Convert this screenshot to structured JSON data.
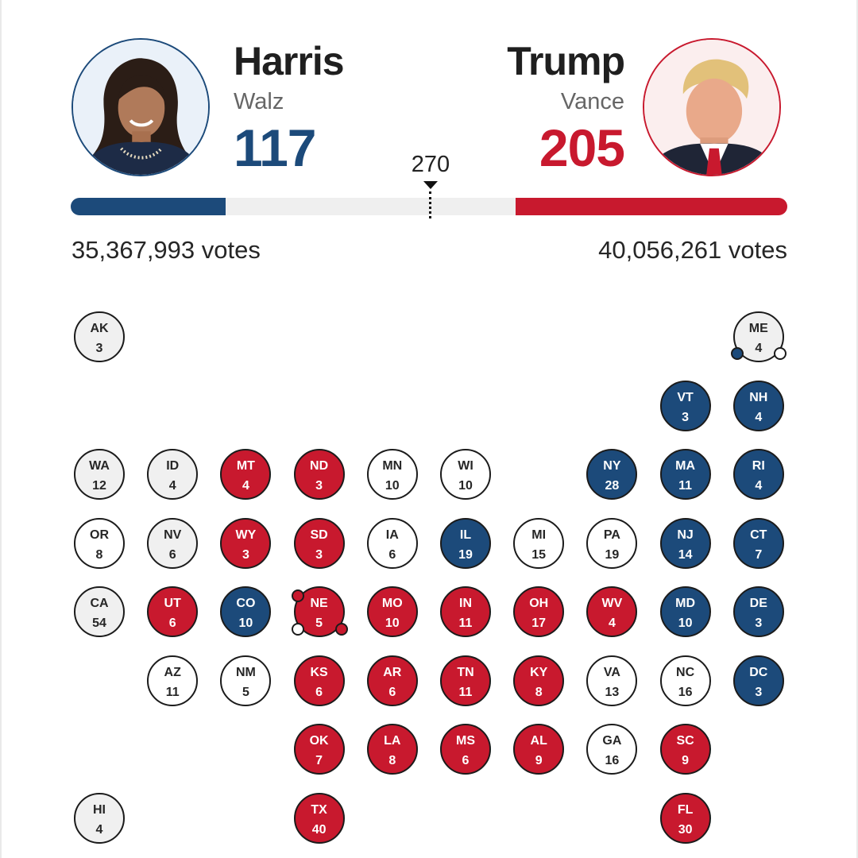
{
  "colors": {
    "dem": "#1c4a7a",
    "rep": "#c8192e",
    "undecided_light": "#f0f0f0",
    "undecided_white": "#ffffff"
  },
  "dem": {
    "name": "Harris",
    "running_mate": "Walz",
    "electoral_votes": "117",
    "electoral_share": 0.2167,
    "votes": "35,367,993 votes",
    "avatar_icon": "portrait-harris"
  },
  "rep": {
    "name": "Trump",
    "running_mate": "Vance",
    "electoral_votes": "205",
    "electoral_share": 0.3796,
    "votes": "40,056,261 votes",
    "avatar_icon": "portrait-trump"
  },
  "threshold": "270",
  "states": [
    {
      "abbr": "AK",
      "ev": "3",
      "status": "reporting",
      "col": 0,
      "row": 0
    },
    {
      "abbr": "ME",
      "ev": "4",
      "status": "reporting",
      "col": 9,
      "row": 0,
      "districts": [
        "dem",
        "none"
      ]
    },
    {
      "abbr": "VT",
      "ev": "3",
      "status": "dem",
      "col": 8,
      "row": 1
    },
    {
      "abbr": "NH",
      "ev": "4",
      "status": "dem",
      "col": 9,
      "row": 1
    },
    {
      "abbr": "WA",
      "ev": "12",
      "status": "reporting",
      "col": 0,
      "row": 2
    },
    {
      "abbr": "ID",
      "ev": "4",
      "status": "reporting",
      "col": 1,
      "row": 2
    },
    {
      "abbr": "MT",
      "ev": "4",
      "status": "rep",
      "col": 2,
      "row": 2
    },
    {
      "abbr": "ND",
      "ev": "3",
      "status": "rep",
      "col": 3,
      "row": 2
    },
    {
      "abbr": "MN",
      "ev": "10",
      "status": "none",
      "col": 4,
      "row": 2
    },
    {
      "abbr": "WI",
      "ev": "10",
      "status": "none",
      "col": 5,
      "row": 2
    },
    {
      "abbr": "NY",
      "ev": "28",
      "status": "dem",
      "col": 7,
      "row": 2
    },
    {
      "abbr": "MA",
      "ev": "11",
      "status": "dem",
      "col": 8,
      "row": 2
    },
    {
      "abbr": "RI",
      "ev": "4",
      "status": "dem",
      "col": 9,
      "row": 2
    },
    {
      "abbr": "OR",
      "ev": "8",
      "status": "none",
      "col": 0,
      "row": 3
    },
    {
      "abbr": "NV",
      "ev": "6",
      "status": "reporting",
      "col": 1,
      "row": 3
    },
    {
      "abbr": "WY",
      "ev": "3",
      "status": "rep",
      "col": 2,
      "row": 3
    },
    {
      "abbr": "SD",
      "ev": "3",
      "status": "rep",
      "col": 3,
      "row": 3
    },
    {
      "abbr": "IA",
      "ev": "6",
      "status": "none",
      "col": 4,
      "row": 3
    },
    {
      "abbr": "IL",
      "ev": "19",
      "status": "dem",
      "col": 5,
      "row": 3
    },
    {
      "abbr": "MI",
      "ev": "15",
      "status": "none",
      "col": 6,
      "row": 3
    },
    {
      "abbr": "PA",
      "ev": "19",
      "status": "none",
      "col": 7,
      "row": 3
    },
    {
      "abbr": "NJ",
      "ev": "14",
      "status": "dem",
      "col": 8,
      "row": 3
    },
    {
      "abbr": "CT",
      "ev": "7",
      "status": "dem",
      "col": 9,
      "row": 3
    },
    {
      "abbr": "CA",
      "ev": "54",
      "status": "reporting",
      "col": 0,
      "row": 4
    },
    {
      "abbr": "UT",
      "ev": "6",
      "status": "rep",
      "col": 1,
      "row": 4
    },
    {
      "abbr": "CO",
      "ev": "10",
      "status": "dem",
      "col": 2,
      "row": 4
    },
    {
      "abbr": "NE",
      "ev": "5",
      "status": "rep",
      "col": 3,
      "row": 4,
      "districts": [
        "rep",
        "none",
        "rep"
      ]
    },
    {
      "abbr": "MO",
      "ev": "10",
      "status": "rep",
      "col": 4,
      "row": 4
    },
    {
      "abbr": "IN",
      "ev": "11",
      "status": "rep",
      "col": 5,
      "row": 4
    },
    {
      "abbr": "OH",
      "ev": "17",
      "status": "rep",
      "col": 6,
      "row": 4
    },
    {
      "abbr": "WV",
      "ev": "4",
      "status": "rep",
      "col": 7,
      "row": 4
    },
    {
      "abbr": "MD",
      "ev": "10",
      "status": "dem",
      "col": 8,
      "row": 4
    },
    {
      "abbr": "DE",
      "ev": "3",
      "status": "dem",
      "col": 9,
      "row": 4
    },
    {
      "abbr": "AZ",
      "ev": "11",
      "status": "none",
      "col": 1,
      "row": 5
    },
    {
      "abbr": "NM",
      "ev": "5",
      "status": "none",
      "col": 2,
      "row": 5
    },
    {
      "abbr": "KS",
      "ev": "6",
      "status": "rep",
      "col": 3,
      "row": 5
    },
    {
      "abbr": "AR",
      "ev": "6",
      "status": "rep",
      "col": 4,
      "row": 5
    },
    {
      "abbr": "TN",
      "ev": "11",
      "status": "rep",
      "col": 5,
      "row": 5
    },
    {
      "abbr": "KY",
      "ev": "8",
      "status": "rep",
      "col": 6,
      "row": 5
    },
    {
      "abbr": "VA",
      "ev": "13",
      "status": "none",
      "col": 7,
      "row": 5
    },
    {
      "abbr": "NC",
      "ev": "16",
      "status": "none",
      "col": 8,
      "row": 5
    },
    {
      "abbr": "DC",
      "ev": "3",
      "status": "dem",
      "col": 9,
      "row": 5
    },
    {
      "abbr": "OK",
      "ev": "7",
      "status": "rep",
      "col": 3,
      "row": 6
    },
    {
      "abbr": "LA",
      "ev": "8",
      "status": "rep",
      "col": 4,
      "row": 6
    },
    {
      "abbr": "MS",
      "ev": "6",
      "status": "rep",
      "col": 5,
      "row": 6
    },
    {
      "abbr": "AL",
      "ev": "9",
      "status": "rep",
      "col": 6,
      "row": 6
    },
    {
      "abbr": "GA",
      "ev": "16",
      "status": "none",
      "col": 7,
      "row": 6
    },
    {
      "abbr": "SC",
      "ev": "9",
      "status": "rep",
      "col": 8,
      "row": 6
    },
    {
      "abbr": "HI",
      "ev": "4",
      "status": "reporting",
      "col": 0,
      "row": 7
    },
    {
      "abbr": "TX",
      "ev": "40",
      "status": "rep",
      "col": 3,
      "row": 7
    },
    {
      "abbr": "FL",
      "ev": "30",
      "status": "rep",
      "col": 8,
      "row": 7
    }
  ]
}
